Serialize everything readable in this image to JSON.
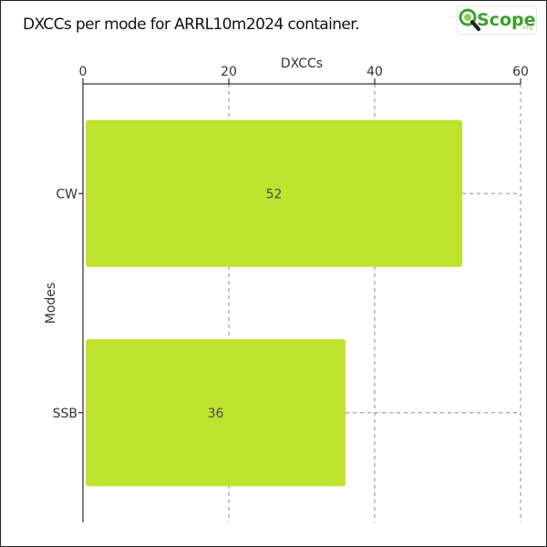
{
  "title": "DXCCs per mode for ARRL10m2024 container.",
  "logo": {
    "text": "Scope",
    "suffix": ".org",
    "icon": "magnifier-q-icon"
  },
  "colors": {
    "bar": "#bee32f",
    "grid": "#888888",
    "axis": "#000000",
    "logo_green": "#3aa12a"
  },
  "chart_data": {
    "type": "bar",
    "orientation": "horizontal",
    "title": "DXCCs per mode for ARRL10m2024 container.",
    "xlabel": "DXCCs",
    "ylabel": "Modes",
    "categories": [
      "CW",
      "SSB"
    ],
    "values": [
      52,
      36
    ],
    "xlim": [
      0,
      60
    ],
    "xticks": [
      0,
      20,
      40,
      60
    ],
    "x_axis_position": "top",
    "grid": "vertical dashed",
    "data_labels": [
      "52",
      "36"
    ]
  }
}
